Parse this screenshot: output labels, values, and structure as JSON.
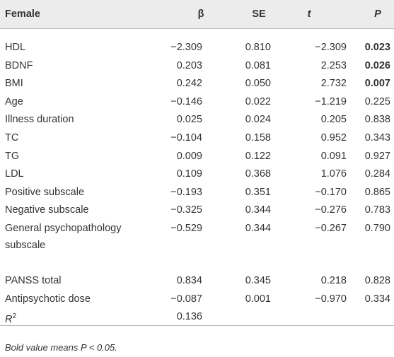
{
  "table": {
    "columns": [
      "Female",
      "β",
      "SE",
      "t",
      "P"
    ],
    "rows": [
      {
        "label": "HDL",
        "beta": "−2.309",
        "se": "0.810",
        "t": "−2.309",
        "p": "0.023",
        "p_bold": true
      },
      {
        "label": "BDNF",
        "beta": "0.203",
        "se": "0.081",
        "t": "2.253",
        "p": "0.026",
        "p_bold": true
      },
      {
        "label": "BMI",
        "beta": "0.242",
        "se": "0.050",
        "t": "2.732",
        "p": "0.007",
        "p_bold": true
      },
      {
        "label": "Age",
        "beta": "−0.146",
        "se": "0.022",
        "t": "−1.219",
        "p": "0.225"
      },
      {
        "label": "Illness duration",
        "beta": "0.025",
        "se": "0.024",
        "t": "0.205",
        "p": "0.838"
      },
      {
        "label": "TC",
        "beta": "−0.104",
        "se": "0.158",
        "t": "0.952",
        "p": "0.343"
      },
      {
        "label": "TG",
        "beta": "0.009",
        "se": "0.122",
        "t": "0.091",
        "p": "0.927"
      },
      {
        "label": "LDL",
        "beta": "0.109",
        "se": "0.368",
        "t": "1.076",
        "p": "0.284"
      },
      {
        "label": "Positive subscale",
        "beta": "−0.193",
        "se": "0.351",
        "t": "−0.170",
        "p": "0.865"
      },
      {
        "label": "Negative subscale",
        "beta": "−0.325",
        "se": "0.344",
        "t": "−0.276",
        "p": "0.783"
      },
      {
        "label": "General psychopathology subscale",
        "beta": "−0.529",
        "se": "0.344",
        "t": "−0.267",
        "p": "0.790",
        "tall": true
      },
      {
        "label": "PANSS total",
        "beta": "0.834",
        "se": "0.345",
        "t": "0.218",
        "p": "0.828"
      },
      {
        "label": "Antipsychotic dose",
        "beta": "−0.087",
        "se": "0.001",
        "t": "−0.970",
        "p": "0.334"
      },
      {
        "label": "R",
        "label_sup": "2",
        "beta": "0.136",
        "se": null,
        "t": null,
        "p": null,
        "label_italic": true
      }
    ],
    "footnote": "Bold value means P < 0.05."
  }
}
